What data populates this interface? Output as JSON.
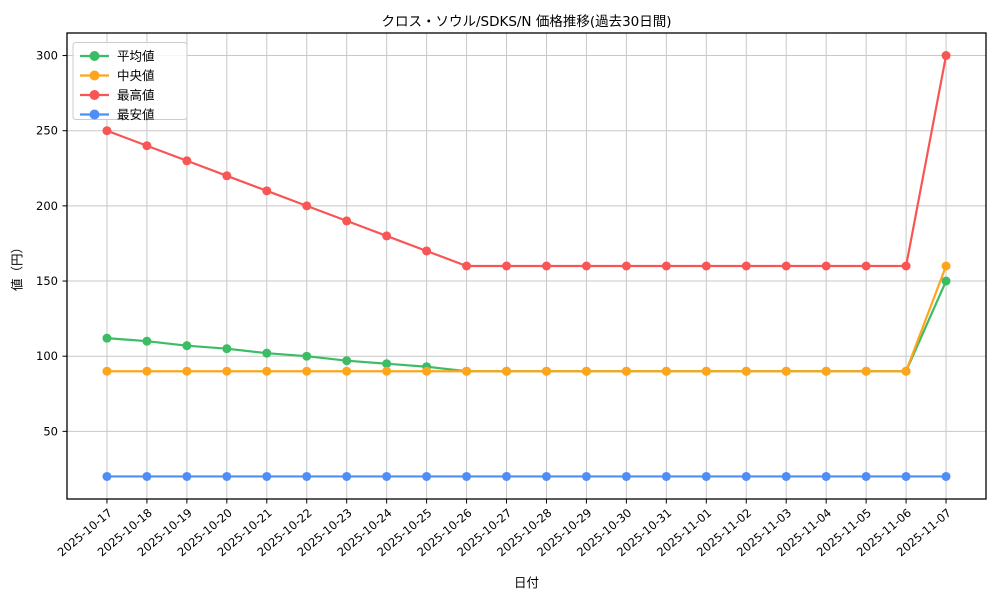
{
  "chart_data": {
    "type": "line",
    "title": "クロス・ソウル/SDKS/N 価格推移(過去30日間)",
    "xlabel": "日付",
    "ylabel": "値（円）",
    "x": [
      "2025-10-17",
      "2025-10-18",
      "2025-10-19",
      "2025-10-20",
      "2025-10-21",
      "2025-10-22",
      "2025-10-23",
      "2025-10-24",
      "2025-10-25",
      "2025-10-26",
      "2025-10-27",
      "2025-10-28",
      "2025-10-29",
      "2025-10-30",
      "2025-10-31",
      "2025-11-01",
      "2025-11-02",
      "2025-11-03",
      "2025-11-04",
      "2025-11-05",
      "2025-11-06",
      "2025-11-07"
    ],
    "series": [
      {
        "id": "mean",
        "name": "平均値",
        "color": "#3cbd65",
        "values": [
          112,
          110,
          107,
          105,
          102,
          100,
          97,
          95,
          93,
          90,
          90,
          90,
          90,
          90,
          90,
          90,
          90,
          90,
          90,
          90,
          90,
          150
        ]
      },
      {
        "id": "median",
        "name": "中央値",
        "color": "#ffa51c",
        "values": [
          90,
          90,
          90,
          90,
          90,
          90,
          90,
          90,
          90,
          90,
          90,
          90,
          90,
          90,
          90,
          90,
          90,
          90,
          90,
          90,
          90,
          160
        ]
      },
      {
        "id": "max",
        "name": "最高値",
        "color": "#f85555",
        "values": [
          250,
          240,
          230,
          220,
          210,
          200,
          190,
          180,
          170,
          160,
          160,
          160,
          160,
          160,
          160,
          160,
          160,
          160,
          160,
          160,
          160,
          300
        ]
      },
      {
        "id": "min",
        "name": "最安値",
        "color": "#4e8ef5",
        "values": [
          20,
          20,
          20,
          20,
          20,
          20,
          20,
          20,
          20,
          20,
          20,
          20,
          20,
          20,
          20,
          20,
          20,
          20,
          20,
          20,
          20,
          20
        ]
      }
    ],
    "yticks": [
      50,
      100,
      150,
      200,
      250,
      300
    ],
    "ylim": [
      5,
      315
    ],
    "grid": true,
    "grid_color": "#c8c8c8",
    "spine_color": "#000000",
    "background": "#ffffff",
    "legend_position": "upper-left"
  }
}
